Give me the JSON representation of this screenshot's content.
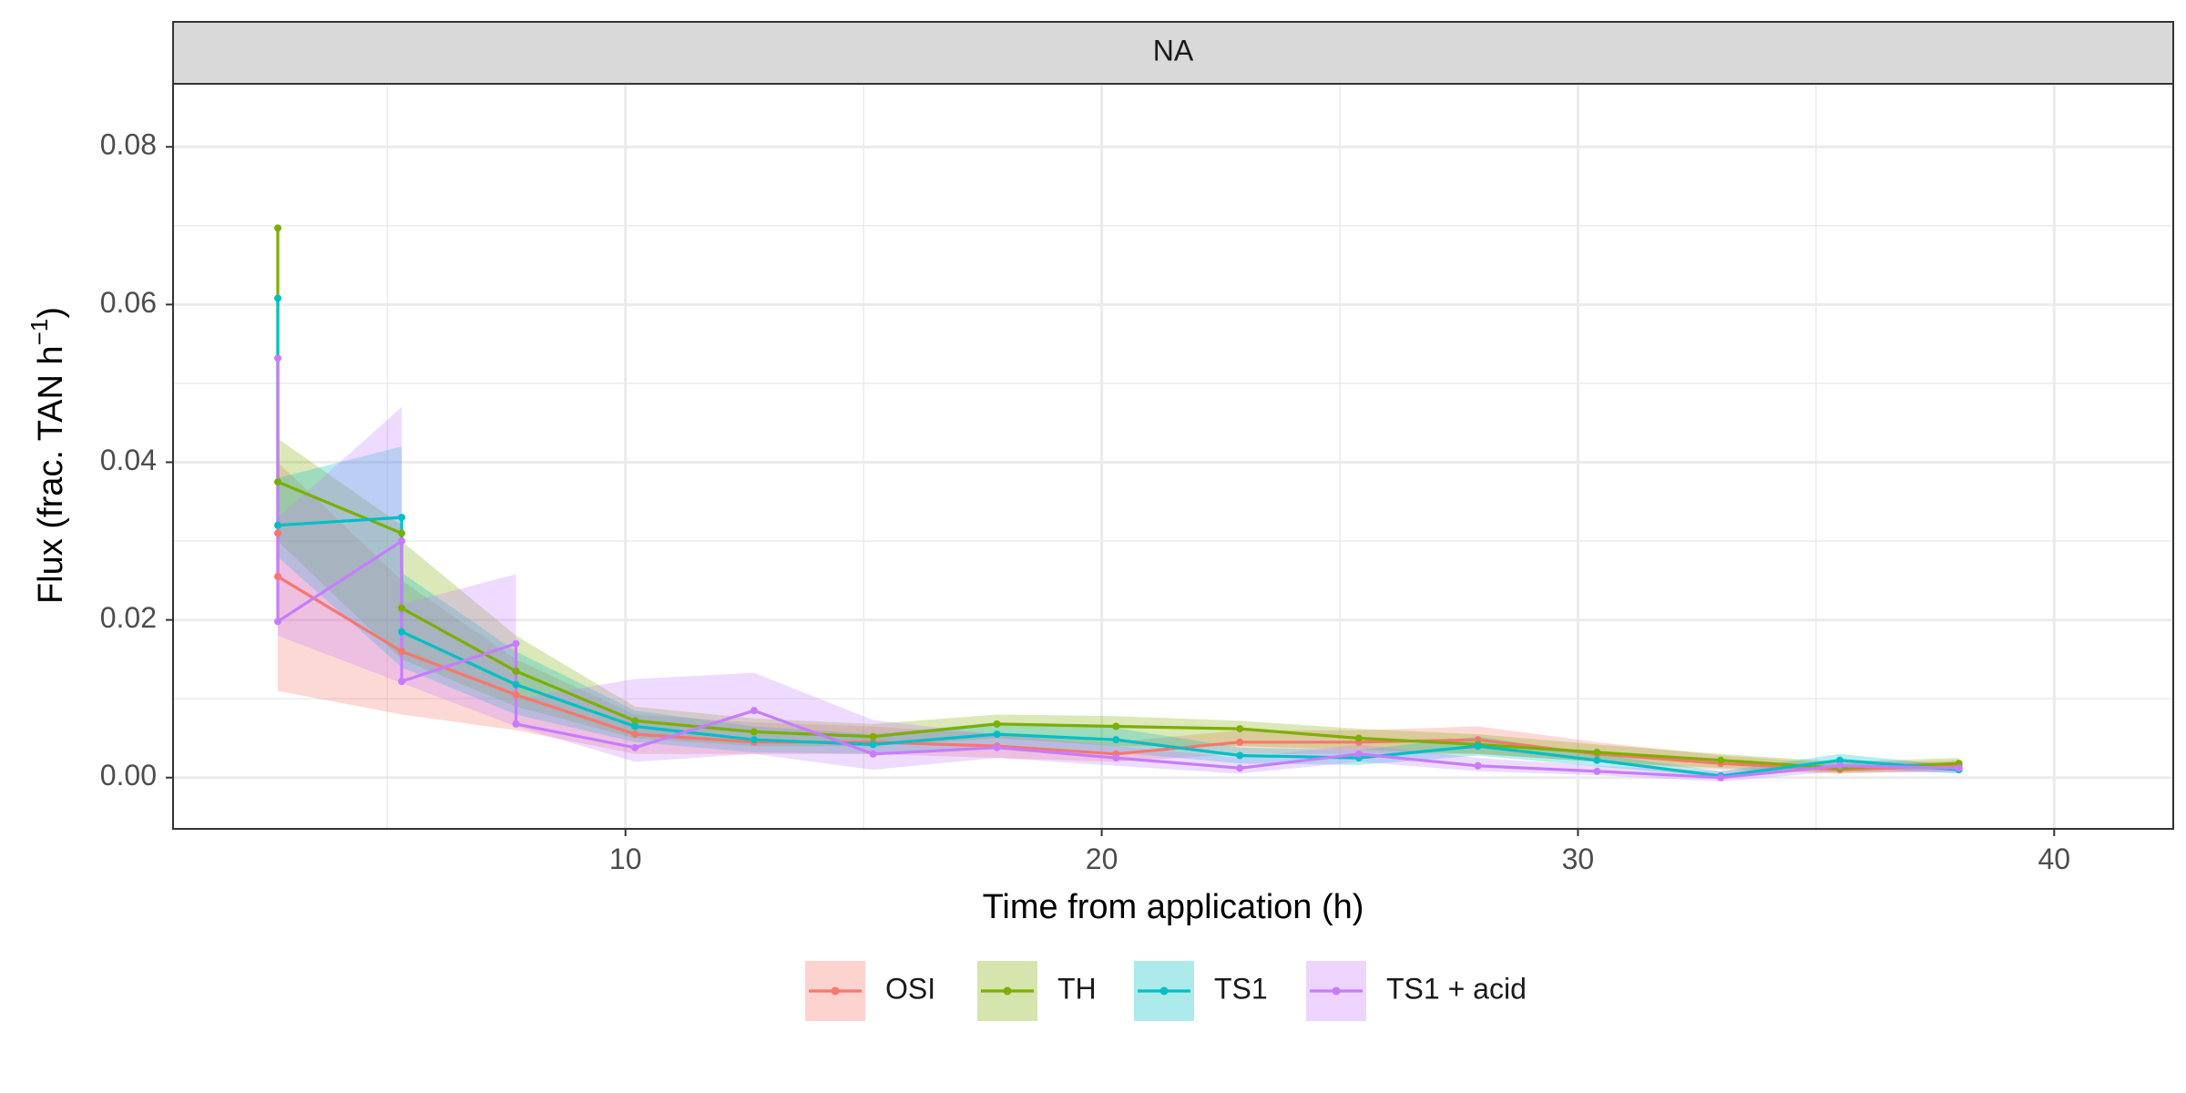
{
  "chart_data": {
    "type": "line",
    "facet_label": "NA",
    "xlabel": "Time from application (h)",
    "ylabel": {
      "main": "Flux (frac. TAN  h",
      "sup": "−1",
      "end": ")"
    },
    "xlim": [
      0.5,
      42.5
    ],
    "ylim": [
      -0.0065,
      0.088
    ],
    "x_ticks": [
      10,
      20,
      30,
      40
    ],
    "y_ticks": [
      0.0,
      0.02,
      0.04,
      0.06,
      0.08
    ],
    "y_tick_labels": [
      "0.00",
      "0.02",
      "0.04",
      "0.06",
      "0.08"
    ],
    "x_tick_labels": [
      "10",
      "20",
      "30",
      "40"
    ],
    "grid": true,
    "legend_position": "bottom",
    "series": [
      {
        "name": "OSI",
        "color": "#F8766D",
        "x": [
          2.7,
          2.7,
          5.3,
          7.7,
          10.2,
          12.7,
          15.2,
          17.8,
          20.3,
          22.9,
          25.4,
          27.9,
          30.4,
          33.0,
          35.5,
          38.0
        ],
        "y": [
          0.031,
          0.0255,
          0.016,
          0.0105,
          0.0055,
          0.0045,
          0.0045,
          0.004,
          0.003,
          0.0045,
          0.0045,
          0.0048,
          0.003,
          0.0018,
          0.001,
          0.0015
        ],
        "lo": [
          0.011,
          0.011,
          0.008,
          0.006,
          0.003,
          0.003,
          0.003,
          0.0025,
          0.002,
          0.003,
          0.003,
          0.003,
          0.002,
          0.001,
          0.0005,
          0.0008
        ],
        "hi": [
          0.04,
          0.04,
          0.025,
          0.015,
          0.008,
          0.007,
          0.0065,
          0.0055,
          0.0045,
          0.006,
          0.006,
          0.0065,
          0.0045,
          0.0028,
          0.0018,
          0.0022
        ]
      },
      {
        "name": "TH",
        "color": "#7CAE00",
        "x": [
          2.7,
          2.7,
          5.3,
          5.3,
          7.7,
          10.2,
          12.7,
          15.2,
          17.8,
          20.3,
          22.9,
          25.4,
          27.9,
          30.4,
          33.0,
          35.5,
          38.0
        ],
        "y": [
          0.0697,
          0.0375,
          0.031,
          0.0215,
          0.0135,
          0.0072,
          0.0058,
          0.0052,
          0.0068,
          0.0065,
          0.0062,
          0.005,
          0.0042,
          0.0032,
          0.0022,
          0.0012,
          0.0018
        ],
        "lo": [
          0.03,
          0.03,
          0.015,
          0.015,
          0.009,
          0.005,
          0.004,
          0.004,
          0.005,
          0.004,
          0.004,
          0.0035,
          0.003,
          0.002,
          0.0012,
          0.0006,
          0.001
        ],
        "hi": [
          0.043,
          0.043,
          0.032,
          0.03,
          0.018,
          0.009,
          0.0075,
          0.0068,
          0.008,
          0.0078,
          0.0072,
          0.0062,
          0.0055,
          0.0042,
          0.003,
          0.002,
          0.0025
        ]
      },
      {
        "name": "TS1",
        "color": "#00BFC4",
        "x": [
          2.7,
          2.7,
          5.3,
          5.3,
          7.7,
          10.2,
          12.7,
          15.2,
          17.8,
          20.3,
          22.9,
          25.4,
          27.9,
          30.4,
          33.0,
          35.5,
          38.0
        ],
        "y": [
          0.0608,
          0.032,
          0.033,
          0.0185,
          0.0118,
          0.0065,
          0.0048,
          0.0042,
          0.0055,
          0.0048,
          0.0028,
          0.0025,
          0.004,
          0.0022,
          0.0002,
          0.0022,
          0.001
        ],
        "lo": [
          0.028,
          0.028,
          0.014,
          0.014,
          0.008,
          0.0045,
          0.0032,
          0.003,
          0.004,
          0.0032,
          0.0018,
          0.0016,
          0.0028,
          0.0014,
          0.0001,
          0.0014,
          0.0005
        ],
        "hi": [
          0.038,
          0.038,
          0.042,
          0.026,
          0.016,
          0.0085,
          0.0065,
          0.0055,
          0.007,
          0.0063,
          0.0038,
          0.0035,
          0.0052,
          0.003,
          0.0008,
          0.003,
          0.0015
        ]
      },
      {
        "name": "TS1 + acid",
        "color": "#C77CFF",
        "x": [
          2.7,
          2.7,
          5.3,
          5.3,
          7.7,
          7.7,
          10.2,
          12.7,
          15.2,
          17.8,
          20.3,
          22.9,
          25.4,
          27.9,
          30.4,
          33.0,
          35.5,
          38.0
        ],
        "y": [
          0.0532,
          0.0198,
          0.03,
          0.0122,
          0.017,
          0.0068,
          0.0038,
          0.0085,
          0.003,
          0.0038,
          0.0025,
          0.0012,
          0.003,
          0.0015,
          0.0008,
          0.0,
          0.0015,
          0.0012
        ],
        "lo": [
          0.018,
          0.018,
          0.012,
          0.012,
          0.0065,
          0.0065,
          0.002,
          0.003,
          0.001,
          0.0025,
          0.0015,
          0.0005,
          0.002,
          0.0008,
          0.0003,
          -0.0005,
          0.0008,
          0.0006
        ],
        "hi": [
          0.033,
          0.033,
          0.047,
          0.022,
          0.0258,
          0.01,
          0.0125,
          0.0133,
          0.0073,
          0.0055,
          0.004,
          0.0025,
          0.0042,
          0.0025,
          0.0015,
          0.0008,
          0.0022,
          0.0018
        ]
      }
    ]
  }
}
